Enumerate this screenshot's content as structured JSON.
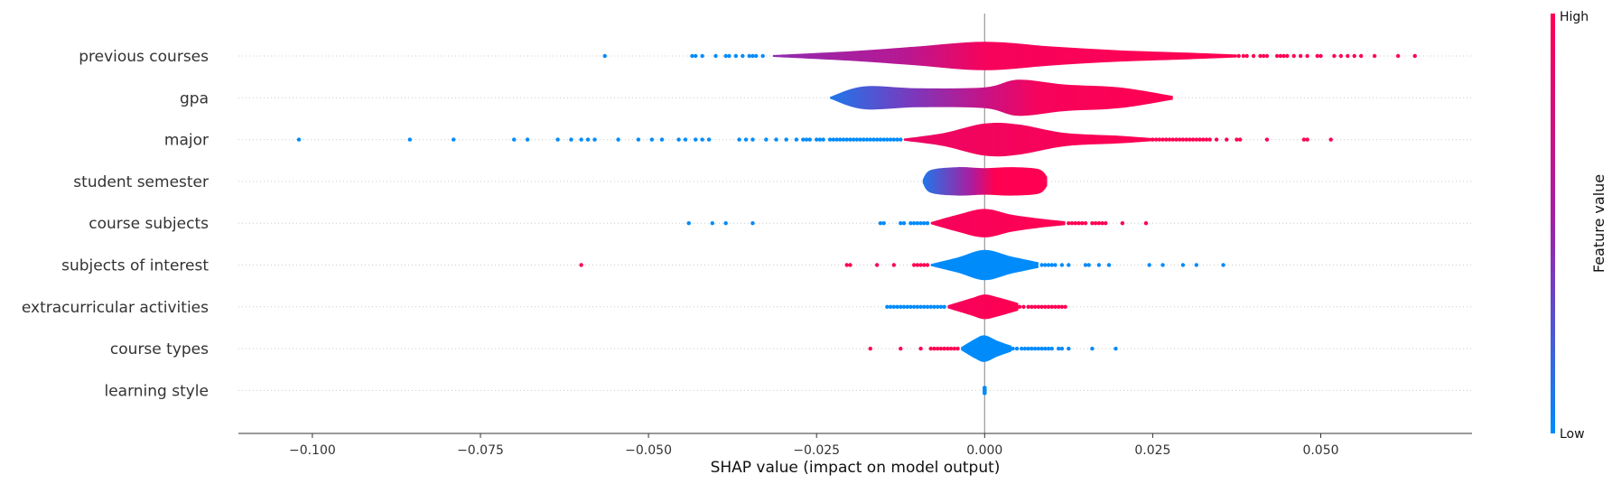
{
  "chart_data": {
    "type": "violin",
    "title": "",
    "xlabel": "SHAP value (impact on model output)",
    "xlim": [
      -0.111,
      0.0725
    ],
    "xticks": [
      -0.1,
      -0.075,
      -0.05,
      -0.025,
      0.0,
      0.025,
      0.05
    ],
    "xtick_labels": [
      "−0.100",
      "−0.075",
      "−0.050",
      "−0.025",
      "0.000",
      "0.025",
      "0.050"
    ],
    "zero_line": 0.0,
    "grid": "horizontal dotted",
    "colorbar": {
      "title": "Feature value",
      "high_label": "High",
      "low_label": "Low",
      "low_color": "#008bfb",
      "high_color": "#ff0052"
    },
    "features": [
      {
        "name": "previous courses",
        "body": [
          [
            -0.0315,
            0.002
          ],
          [
            -0.02,
            0.01
          ],
          [
            -0.01,
            0.02
          ],
          [
            0.0,
            0.03
          ],
          [
            0.01,
            0.02
          ],
          [
            0.02,
            0.012
          ],
          [
            0.03,
            0.007
          ],
          [
            0.0375,
            0.003
          ]
        ],
        "color_stops": [
          [
            -0.0315,
            0.45
          ],
          [
            -0.012,
            0.62
          ],
          [
            0.0,
            0.95
          ],
          [
            0.0375,
            1.0
          ]
        ],
        "low_points": [
          -0.0565,
          -0.0435,
          -0.043,
          -0.042,
          -0.04,
          -0.0385,
          -0.038,
          -0.037,
          -0.036,
          -0.035,
          -0.0345,
          -0.034,
          -0.033
        ],
        "high_points": [
          0.0378,
          0.0385,
          0.039,
          0.04,
          0.041,
          0.0415,
          0.042,
          0.0435,
          0.044,
          0.0445,
          0.045,
          0.046,
          0.047,
          0.048,
          0.0495,
          0.05,
          0.052,
          0.053,
          0.054,
          0.055,
          0.056,
          0.058,
          0.0615,
          0.064
        ]
      },
      {
        "name": "gpa",
        "body": [
          [
            -0.023,
            0.002
          ],
          [
            -0.018,
            0.024
          ],
          [
            -0.01,
            0.02
          ],
          [
            0.0,
            0.022
          ],
          [
            0.005,
            0.038
          ],
          [
            0.012,
            0.028
          ],
          [
            0.02,
            0.022
          ],
          [
            0.028,
            0.004
          ]
        ],
        "color_stops": [
          [
            -0.023,
            0.1
          ],
          [
            -0.01,
            0.4
          ],
          [
            0.0,
            0.7
          ],
          [
            0.008,
            0.95
          ],
          [
            0.028,
            1.0
          ]
        ],
        "low_points": [],
        "high_points": []
      },
      {
        "name": "major",
        "body": [
          [
            -0.012,
            0.002
          ],
          [
            -0.006,
            0.014
          ],
          [
            0.0,
            0.034
          ],
          [
            0.005,
            0.032
          ],
          [
            0.012,
            0.014
          ],
          [
            0.02,
            0.008
          ],
          [
            0.025,
            0.003
          ]
        ],
        "color_stops": [
          [
            -0.012,
            0.9
          ],
          [
            0.025,
            1.0
          ]
        ],
        "low_points": [
          -0.102,
          -0.0855,
          -0.079,
          -0.07,
          -0.068,
          -0.0635,
          -0.0615,
          -0.06,
          -0.059,
          -0.058,
          -0.0545,
          -0.0515,
          -0.0495,
          -0.048,
          -0.0455,
          -0.0445,
          -0.043,
          -0.042,
          -0.041,
          -0.0365,
          -0.0355,
          -0.0345,
          -0.0325,
          -0.031,
          -0.0295,
          -0.028,
          -0.027,
          -0.0265,
          -0.026,
          -0.025,
          -0.0245,
          -0.024,
          -0.023,
          -0.0225,
          -0.022,
          -0.0215,
          -0.021,
          -0.0205,
          -0.02,
          -0.0195,
          -0.019,
          -0.0185,
          -0.018,
          -0.0175,
          -0.017,
          -0.0165,
          -0.016,
          -0.0155,
          -0.015,
          -0.0145,
          -0.014,
          -0.0135,
          -0.013,
          -0.0125
        ],
        "high_points": [
          0.025,
          0.0255,
          0.026,
          0.0265,
          0.027,
          0.0275,
          0.028,
          0.0285,
          0.029,
          0.0295,
          0.03,
          0.0305,
          0.031,
          0.0315,
          0.032,
          0.0325,
          0.033,
          0.0335,
          0.0345,
          0.036,
          0.0375,
          0.038,
          0.042,
          0.0475,
          0.048,
          0.0515
        ]
      },
      {
        "name": "student semester",
        "body": [
          [
            -0.0092,
            0.004
          ],
          [
            -0.008,
            0.024
          ],
          [
            -0.004,
            0.03
          ],
          [
            0.0,
            0.028
          ],
          [
            0.004,
            0.03
          ],
          [
            0.008,
            0.026
          ],
          [
            0.0093,
            0.01
          ]
        ],
        "color_stops": [
          [
            -0.0092,
            0.1
          ],
          [
            -0.002,
            0.55
          ],
          [
            0.0015,
            1.0
          ],
          [
            0.0093,
            1.0
          ]
        ],
        "low_points": [],
        "high_points": []
      },
      {
        "name": "course subjects",
        "body": [
          [
            -0.008,
            0.002
          ],
          [
            -0.004,
            0.018
          ],
          [
            0.0,
            0.03
          ],
          [
            0.004,
            0.018
          ],
          [
            0.008,
            0.01
          ],
          [
            0.012,
            0.004
          ]
        ],
        "color_stops": [
          [
            -0.008,
            0.95
          ],
          [
            0.012,
            1.0
          ]
        ],
        "low_points": [
          -0.044,
          -0.0405,
          -0.0385,
          -0.0345,
          -0.0155,
          -0.015,
          -0.0125,
          -0.012,
          -0.011,
          -0.0105,
          -0.01,
          -0.0095,
          -0.009,
          -0.0085
        ],
        "high_points": [
          0.0125,
          0.013,
          0.0135,
          0.014,
          0.0145,
          0.015,
          0.016,
          0.0165,
          0.017,
          0.0175,
          0.018,
          0.0205,
          0.024
        ]
      },
      {
        "name": "subjects of interest",
        "body": [
          [
            -0.008,
            0.002
          ],
          [
            -0.004,
            0.016
          ],
          [
            0.0,
            0.032
          ],
          [
            0.004,
            0.018
          ],
          [
            0.008,
            0.006
          ]
        ],
        "color_stops": [
          [
            -0.008,
            0.0
          ],
          [
            0.008,
            0.0
          ]
        ],
        "low_points": [
          0.0085,
          0.009,
          0.0095,
          0.01,
          0.0105,
          0.0115,
          0.0125,
          0.015,
          0.0155,
          0.017,
          0.0185,
          0.0245,
          0.0265,
          0.0295,
          0.0315,
          0.0355
        ],
        "high_points": [
          -0.06,
          -0.0205,
          -0.02,
          -0.016,
          -0.0135,
          -0.0105,
          -0.01,
          -0.0095,
          -0.009,
          -0.0085
        ]
      },
      {
        "name": "extracurricular activities",
        "body": [
          [
            -0.0055,
            0.003
          ],
          [
            -0.002,
            0.018
          ],
          [
            0.0,
            0.026
          ],
          [
            0.002,
            0.02
          ],
          [
            0.005,
            0.008
          ]
        ],
        "color_stops": [
          [
            -0.0055,
            0.95
          ],
          [
            0.005,
            1.0
          ]
        ],
        "low_points": [
          -0.0145,
          -0.014,
          -0.0135,
          -0.013,
          -0.0125,
          -0.012,
          -0.0115,
          -0.011,
          -0.0105,
          -0.01,
          -0.0095,
          -0.009,
          -0.0085,
          -0.008,
          -0.0075,
          -0.007,
          -0.0065,
          -0.006
        ],
        "high_points": [
          0.0052,
          0.0058,
          0.0065,
          0.007,
          0.0075,
          0.008,
          0.0085,
          0.009,
          0.0095,
          0.01,
          0.0105,
          0.011,
          0.0115,
          0.012
        ]
      },
      {
        "name": "course types",
        "body": [
          [
            -0.0035,
            0.003
          ],
          [
            -0.0015,
            0.02
          ],
          [
            0.0,
            0.028
          ],
          [
            0.002,
            0.016
          ],
          [
            0.004,
            0.006
          ]
        ],
        "color_stops": [
          [
            -0.0035,
            0.0
          ],
          [
            0.004,
            0.0
          ]
        ],
        "low_points": [
          0.0042,
          0.0048,
          0.0055,
          0.006,
          0.0065,
          0.007,
          0.0075,
          0.008,
          0.0085,
          0.009,
          0.0095,
          0.01,
          0.011,
          0.0115,
          0.0125,
          0.016,
          0.0195
        ],
        "high_points": [
          -0.017,
          -0.0125,
          -0.0095,
          -0.008,
          -0.0075,
          -0.007,
          -0.0065,
          -0.006,
          -0.0055,
          -0.005,
          -0.0045,
          -0.004
        ]
      },
      {
        "name": "learning style",
        "body": [
          [
            -0.0003,
            0.008
          ],
          [
            0.0,
            0.01
          ],
          [
            0.0003,
            0.008
          ]
        ],
        "color_stops": [
          [
            -0.0003,
            0.0
          ],
          [
            0.0003,
            0.0
          ]
        ],
        "low_points": [],
        "high_points": []
      }
    ]
  }
}
